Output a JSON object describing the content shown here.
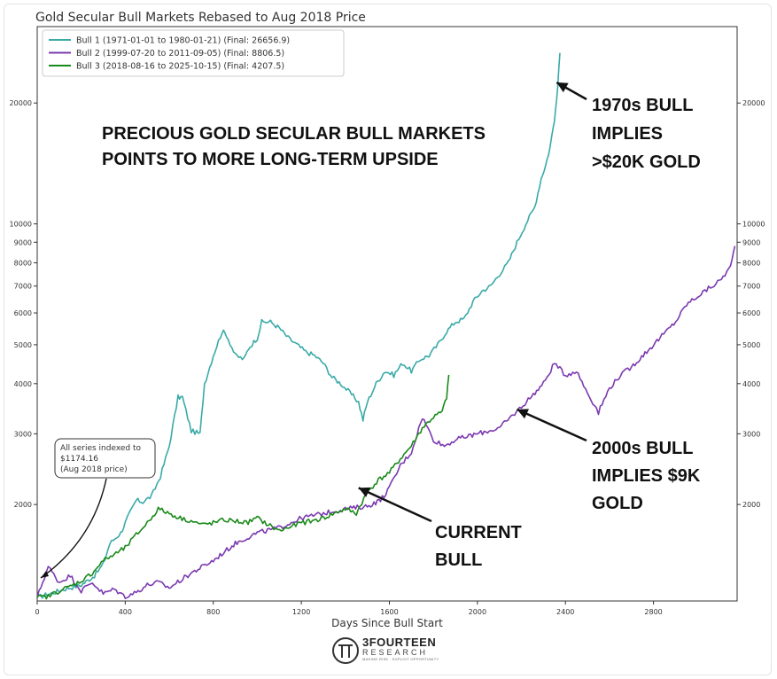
{
  "chart_data": {
    "type": "line",
    "title": "Gold Secular Bull Markets Rebased to Aug 2018 Price",
    "xlabel": "Days Since Bull Start",
    "ylabel": "",
    "xlim": [
      0,
      3180
    ],
    "ylim": [
      1150,
      31000
    ],
    "y_scale": "log",
    "x_ticks": [
      0,
      400,
      800,
      1200,
      1600,
      2000,
      2400,
      2800
    ],
    "x_tick_labels": [
      "0",
      "400",
      "800",
      "1200",
      "1600",
      "2000",
      "2400",
      "2800"
    ],
    "y_ticks": [
      2000,
      3000,
      4000,
      5000,
      6000,
      7000,
      8000,
      9000,
      10000,
      20000
    ],
    "y_tick_labels": [
      "2000",
      "3000",
      "4000",
      "5000",
      "6000",
      "7000",
      "8000",
      "9000",
      "10000",
      "20000"
    ],
    "grid": false,
    "legend_position": "top-left",
    "series": [
      {
        "name": "Bull 1 (1971-01-01 to 1980-01-21) (Final: 26656.9)",
        "color": "#3aaaa8",
        "x": [
          0,
          60,
          120,
          200,
          260,
          300,
          330,
          380,
          400,
          420,
          450,
          480,
          520,
          560,
          600,
          640,
          660,
          700,
          740,
          760,
          800,
          840,
          860,
          900,
          940,
          960,
          1000,
          1020,
          1060,
          1100,
          1140,
          1180,
          1220,
          1260,
          1300,
          1340,
          1380,
          1420,
          1460,
          1480,
          1500,
          1540,
          1580,
          1620,
          1660,
          1700,
          1740,
          1780,
          1820,
          1860,
          1900,
          1940,
          1980,
          2020,
          2060,
          2100,
          2140,
          2180,
          2220,
          2260,
          2290,
          2310,
          2330,
          2345,
          2355,
          2365,
          2375
        ],
        "y": [
          1174,
          1200,
          1230,
          1260,
          1330,
          1420,
          1600,
          1700,
          1800,
          1900,
          2050,
          2030,
          2100,
          2350,
          2800,
          3700,
          3700,
          3050,
          3000,
          4000,
          4700,
          5400,
          5300,
          4700,
          4600,
          4900,
          5200,
          5700,
          5700,
          5500,
          5200,
          5000,
          4800,
          4700,
          4500,
          4150,
          4000,
          3800,
          3600,
          3250,
          3600,
          4000,
          4300,
          4200,
          4500,
          4300,
          4600,
          4700,
          5000,
          5400,
          5700,
          5800,
          6400,
          6800,
          7000,
          7500,
          8000,
          9000,
          10000,
          11000,
          13000,
          14000,
          15500,
          17500,
          19000,
          22000,
          26657
        ]
      },
      {
        "name": "Bull 2 (1999-07-20 to 2011-09-05) (Final: 8806.5)",
        "color": "#7b3ab0",
        "x": [
          0,
          50,
          100,
          150,
          200,
          250,
          300,
          350,
          400,
          450,
          500,
          550,
          600,
          700,
          800,
          900,
          1000,
          1100,
          1200,
          1300,
          1400,
          1500,
          1560,
          1600,
          1650,
          1700,
          1750,
          1800,
          1850,
          1900,
          2000,
          2100,
          2200,
          2300,
          2350,
          2400,
          2450,
          2500,
          2550,
          2600,
          2650,
          2700,
          2800,
          2900,
          2950,
          3000,
          3050,
          3100,
          3150,
          3170
        ],
        "y": [
          1174,
          1400,
          1280,
          1330,
          1220,
          1280,
          1200,
          1230,
          1180,
          1210,
          1260,
          1280,
          1240,
          1350,
          1450,
          1600,
          1700,
          1750,
          1850,
          1900,
          1950,
          1980,
          2050,
          2200,
          2500,
          2700,
          3300,
          2900,
          2800,
          2900,
          3000,
          3100,
          3500,
          4000,
          4500,
          4200,
          4300,
          3800,
          3400,
          3900,
          4200,
          4400,
          5000,
          5700,
          6300,
          6600,
          6900,
          7200,
          7800,
          8806
        ]
      },
      {
        "name": "Bull 3 (2018-08-16 to 2025-10-15) (Final: 4207.5)",
        "color": "#1a8a1a",
        "x": [
          0,
          50,
          100,
          150,
          200,
          250,
          300,
          350,
          400,
          450,
          500,
          550,
          600,
          650,
          700,
          750,
          800,
          850,
          900,
          950,
          1000,
          1050,
          1100,
          1150,
          1200,
          1250,
          1300,
          1350,
          1400,
          1450,
          1500,
          1550,
          1600,
          1650,
          1700,
          1750,
          1800,
          1840,
          1860,
          1870
        ],
        "y": [
          1174,
          1180,
          1220,
          1250,
          1290,
          1350,
          1450,
          1500,
          1560,
          1680,
          1800,
          1950,
          1900,
          1850,
          1820,
          1780,
          1800,
          1830,
          1820,
          1800,
          1850,
          1780,
          1720,
          1760,
          1800,
          1820,
          1850,
          1900,
          1950,
          1900,
          2150,
          2300,
          2400,
          2600,
          2800,
          3100,
          3300,
          3400,
          3700,
          4207
        ]
      }
    ],
    "annotation_callout": "All series indexed to\n$1174.16\n(Aug 2018 price)",
    "annotation_callout_lines": [
      "All series indexed to",
      "$1174.16",
      "(Aug 2018 price)"
    ],
    "headline": [
      "PRECIOUS GOLD SECULAR BULL MARKETS",
      "POINTS TO MORE LONG-TERM UPSIDE"
    ],
    "labels": [
      {
        "lines": [
          "1970s BULL",
          "IMPLIES",
          ">$20K GOLD"
        ],
        "arrow_to": {
          "x": 2360,
          "y": 22500
        }
      },
      {
        "lines": [
          "2000s BULL",
          "IMPLIES $9K",
          "GOLD"
        ],
        "arrow_to": {
          "x": 2180,
          "y": 3450
        }
      },
      {
        "lines": [
          "CURRENT",
          "BULL"
        ],
        "arrow_to": {
          "x": 1460,
          "y": 2200
        }
      }
    ]
  },
  "branding": {
    "logo_main": "3FOURTEEN",
    "logo_sub": "RESEARCH",
    "logo_tag": "MAKING RISK · EXPLOIT OPPORTUNITY",
    "logo_icon": "pi-circle-icon"
  }
}
